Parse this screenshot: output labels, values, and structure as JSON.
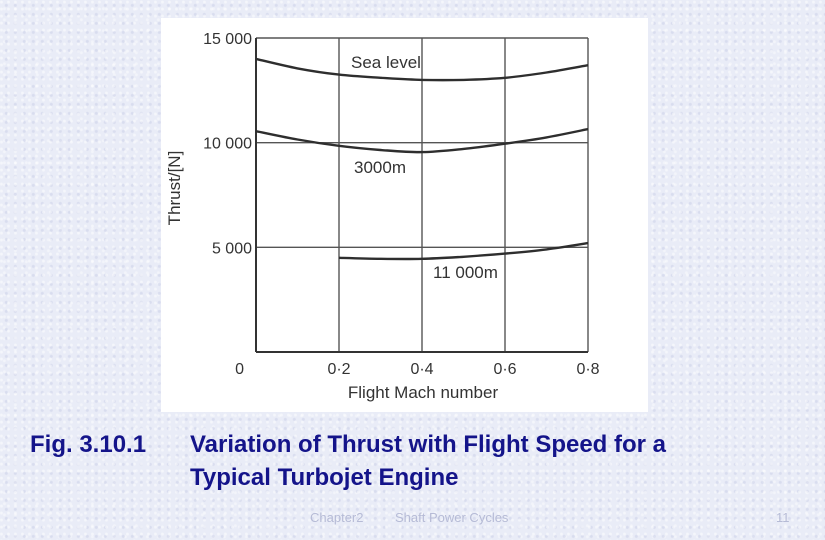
{
  "caption": {
    "figure_number": "Fig. 3.10.1",
    "line1": "Variation of  Thrust with Flight Speed  for a",
    "line2": "Typical Turbojet Engine"
  },
  "footer": {
    "chapter": "Chapter2",
    "title": "Shaft Power Cycles",
    "page": "11"
  },
  "chart_data": {
    "type": "line",
    "xlabel": "Flight Mach number",
    "ylabel": "Thrust/[N]",
    "xlim": [
      0,
      0.8
    ],
    "ylim": [
      0,
      15000
    ],
    "x_ticks": [
      0,
      0.2,
      0.4,
      0.6,
      0.8
    ],
    "x_tick_labels": [
      "0",
      "0·2",
      "0·4",
      "0·6",
      "0·8"
    ],
    "y_ticks": [
      0,
      5000,
      10000,
      15000
    ],
    "y_tick_labels": [
      "0",
      "5 000",
      "10 000",
      "15 000"
    ],
    "grid": true,
    "series": [
      {
        "name": "Sea level",
        "x": [
          0,
          0.1,
          0.2,
          0.3,
          0.4,
          0.5,
          0.6,
          0.7,
          0.8
        ],
        "y": [
          14000,
          13550,
          13250,
          13100,
          13000,
          13000,
          13100,
          13350,
          13700
        ]
      },
      {
        "name": "3000m",
        "x": [
          0,
          0.1,
          0.2,
          0.3,
          0.4,
          0.5,
          0.6,
          0.7,
          0.8
        ],
        "y": [
          10550,
          10150,
          9850,
          9650,
          9550,
          9700,
          9950,
          10250,
          10650
        ]
      },
      {
        "name": "11 000m",
        "x": [
          0.2,
          0.3,
          0.4,
          0.5,
          0.6,
          0.7,
          0.8
        ],
        "y": [
          4500,
          4450,
          4450,
          4550,
          4700,
          4900,
          5200
        ]
      }
    ]
  }
}
